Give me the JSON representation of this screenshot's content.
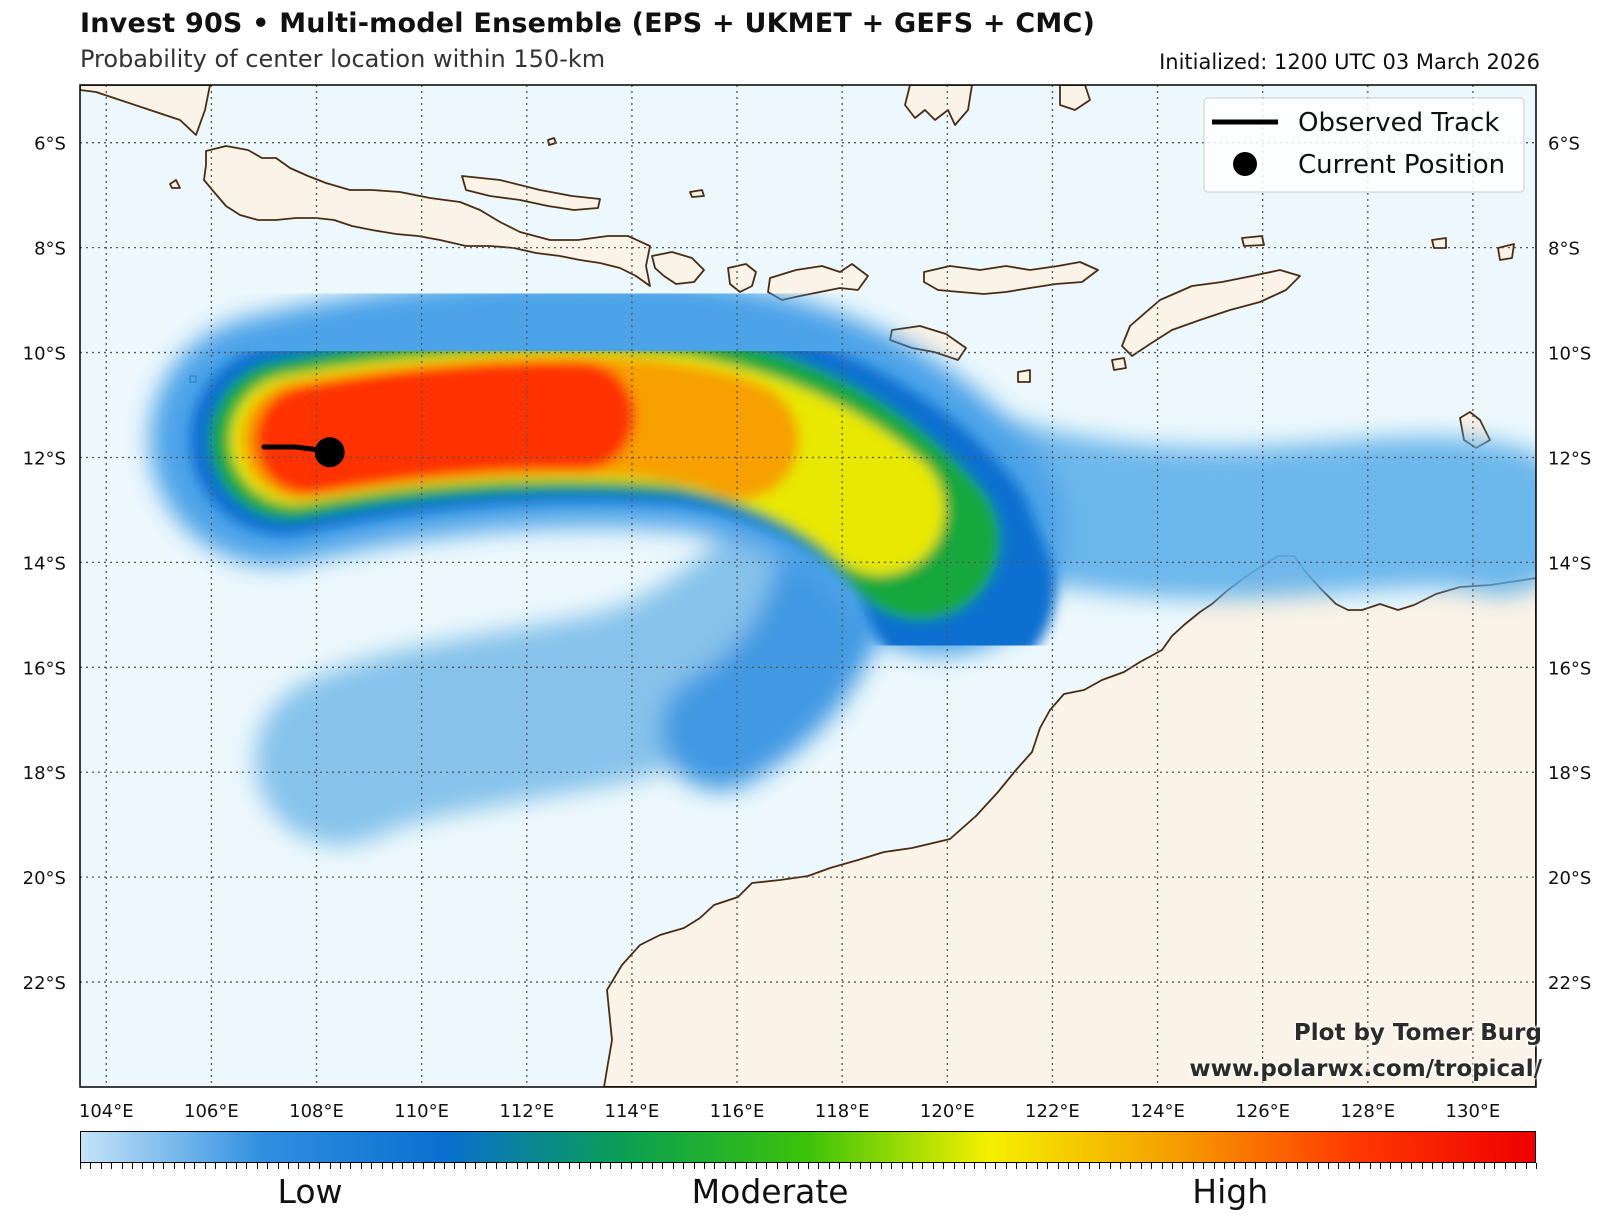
{
  "title": "Invest 90S • Multi-model Ensemble (EPS + UKMET + GEFS + CMC)",
  "subtitle": "Probability of center location within 150-km",
  "initialized": "Initialized: 1200 UTC 03 March 2026",
  "colors": {
    "ocean": "#ecf8fc",
    "land": "#faf3e7",
    "coast": "#4a2c14",
    "grid": "#555555",
    "track": "#000000",
    "scale": [
      "#c5e4f8",
      "#2f8fe0",
      "#0a6fd0",
      "#0aa050",
      "#3cc30a",
      "#f5f000",
      "#f5a000",
      "#ff3a00",
      "#ee0000"
    ]
  },
  "map": {
    "lon_range": [
      103.5,
      131.2
    ],
    "lat_range": [
      -24.0,
      -4.9
    ],
    "lat_labels": [
      {
        "lat": -6,
        "text": "6°S"
      },
      {
        "lat": -8,
        "text": "8°S"
      },
      {
        "lat": -10,
        "text": "10°S"
      },
      {
        "lat": -12,
        "text": "12°S"
      },
      {
        "lat": -14,
        "text": "14°S"
      },
      {
        "lat": -16,
        "text": "16°S"
      },
      {
        "lat": -18,
        "text": "18°S"
      },
      {
        "lat": -20,
        "text": "20°S"
      },
      {
        "lat": -22,
        "text": "22°S"
      }
    ],
    "lon_labels": [
      {
        "lon": 104,
        "text": "104°E"
      },
      {
        "lon": 106,
        "text": "106°E"
      },
      {
        "lon": 108,
        "text": "108°E"
      },
      {
        "lon": 110,
        "text": "110°E"
      },
      {
        "lon": 112,
        "text": "112°E"
      },
      {
        "lon": 114,
        "text": "114°E"
      },
      {
        "lon": 116,
        "text": "116°E"
      },
      {
        "lon": 118,
        "text": "118°E"
      },
      {
        "lon": 120,
        "text": "120°E"
      },
      {
        "lon": 122,
        "text": "122°E"
      },
      {
        "lon": 124,
        "text": "124°E"
      },
      {
        "lon": 126,
        "text": "126°E"
      },
      {
        "lon": 128,
        "text": "128°E"
      },
      {
        "lon": 130,
        "text": "130°E"
      }
    ]
  },
  "observed_track": [
    [
      107.0,
      -11.8
    ],
    [
      107.6,
      -11.8
    ],
    [
      108.0,
      -11.85
    ],
    [
      108.2,
      -11.9
    ]
  ],
  "current_position": {
    "lon": 108.25,
    "lat": -11.9
  },
  "legend": {
    "track_label": "Observed Track",
    "position_label": "Current Position"
  },
  "credit": {
    "line1": "Plot by Tomer Burg",
    "line2": "www.polarwx.com/tropical/"
  },
  "colorbar": {
    "labels": [
      "Low",
      "Moderate",
      "High"
    ],
    "label_positions": [
      0.158,
      0.474,
      0.79
    ]
  },
  "probability_lobes": [
    {
      "name": "main-arc",
      "level": "high",
      "path": [
        [
          107.2,
          -11.5
        ],
        [
          110,
          -11.2
        ],
        [
          113,
          -11.0
        ],
        [
          115.5,
          -11.1
        ],
        [
          117.5,
          -11.7
        ],
        [
          119,
          -12.7
        ],
        [
          120,
          -13.7
        ]
      ]
    },
    {
      "name": "south-branch",
      "level": "low",
      "path": [
        [
          117,
          -15.0
        ],
        [
          116,
          -16.2
        ],
        [
          114,
          -17.0
        ],
        [
          111,
          -17.5
        ],
        [
          108,
          -18.0
        ]
      ]
    },
    {
      "name": "east-tail",
      "level": "low",
      "path": [
        [
          121,
          -13.6
        ],
        [
          124,
          -13.5
        ],
        [
          127,
          -13.5
        ],
        [
          130,
          -13.2
        ]
      ]
    }
  ]
}
